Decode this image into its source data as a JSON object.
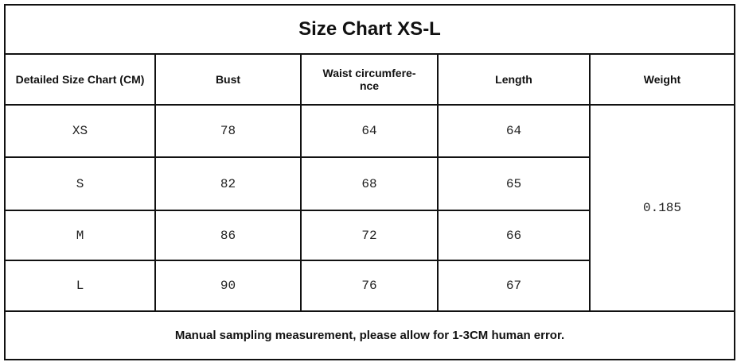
{
  "title": "Size Chart XS-L",
  "headers": [
    "Detailed Size Chart (CM)",
    "Bust",
    "Waist circumfere-nce",
    "Length",
    "Weight"
  ],
  "rows": [
    {
      "size": "XS",
      "bust": "78",
      "waist": "64",
      "length": "64"
    },
    {
      "size": "S",
      "bust": "82",
      "waist": "68",
      "length": "65"
    },
    {
      "size": "M",
      "bust": "86",
      "waist": "72",
      "length": "66"
    },
    {
      "size": "L",
      "bust": "90",
      "waist": "76",
      "length": "67"
    }
  ],
  "weight": "0.185",
  "footer": "Manual sampling measurement, please allow for 1-3CM human error."
}
